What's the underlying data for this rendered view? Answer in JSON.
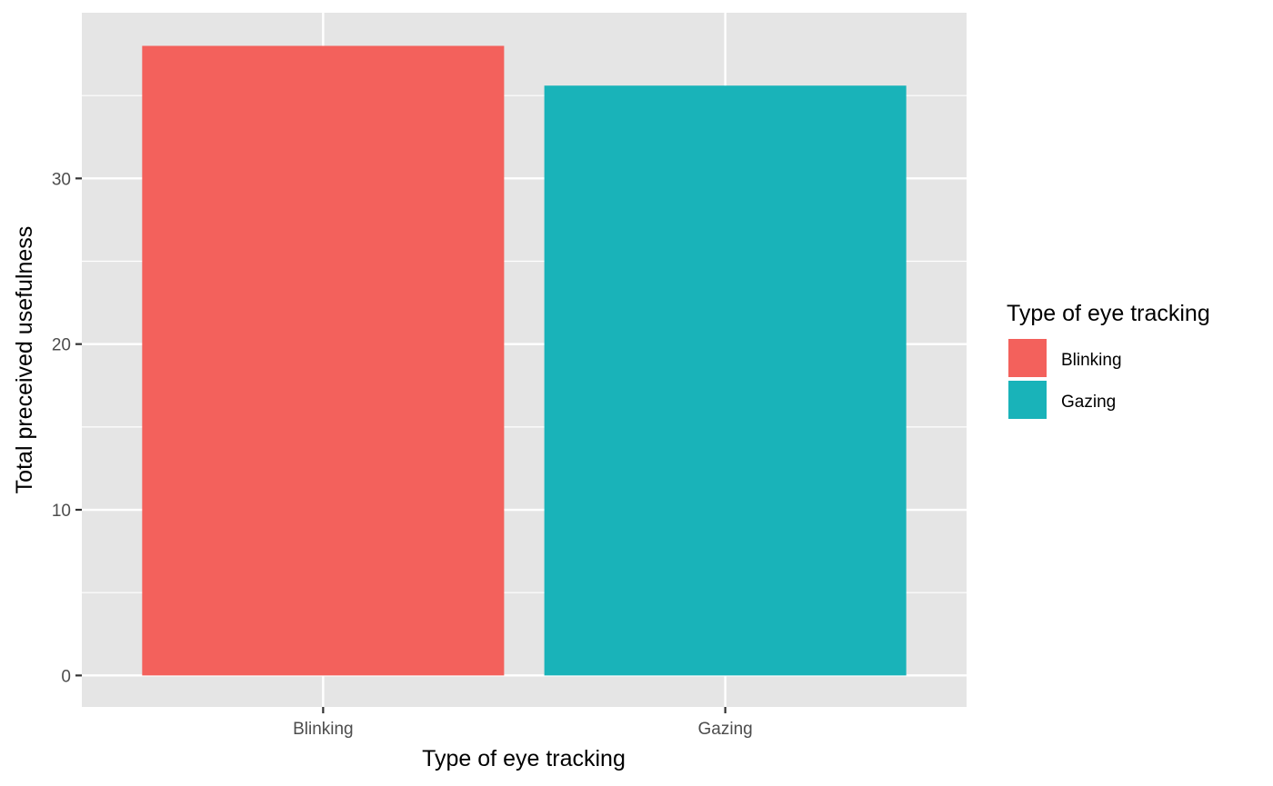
{
  "chart_data": {
    "type": "bar",
    "categories": [
      "Blinking",
      "Gazing"
    ],
    "values": [
      38.0,
      35.6
    ],
    "xlabel": "Type of eye tracking",
    "ylabel": "Total preceived usefulness",
    "ylim": [
      -1.9,
      40.0
    ],
    "yticks": [
      0,
      10,
      20,
      30
    ],
    "ytick_labels": [
      "0",
      "10",
      "20",
      "30"
    ],
    "colors": [
      "#F3615C",
      "#19B3B9"
    ],
    "grid": true,
    "panel_background": "#E5E5E5",
    "legend": {
      "title": "Type of eye tracking",
      "position": "right",
      "entries": [
        "Blinking",
        "Gazing"
      ]
    }
  }
}
